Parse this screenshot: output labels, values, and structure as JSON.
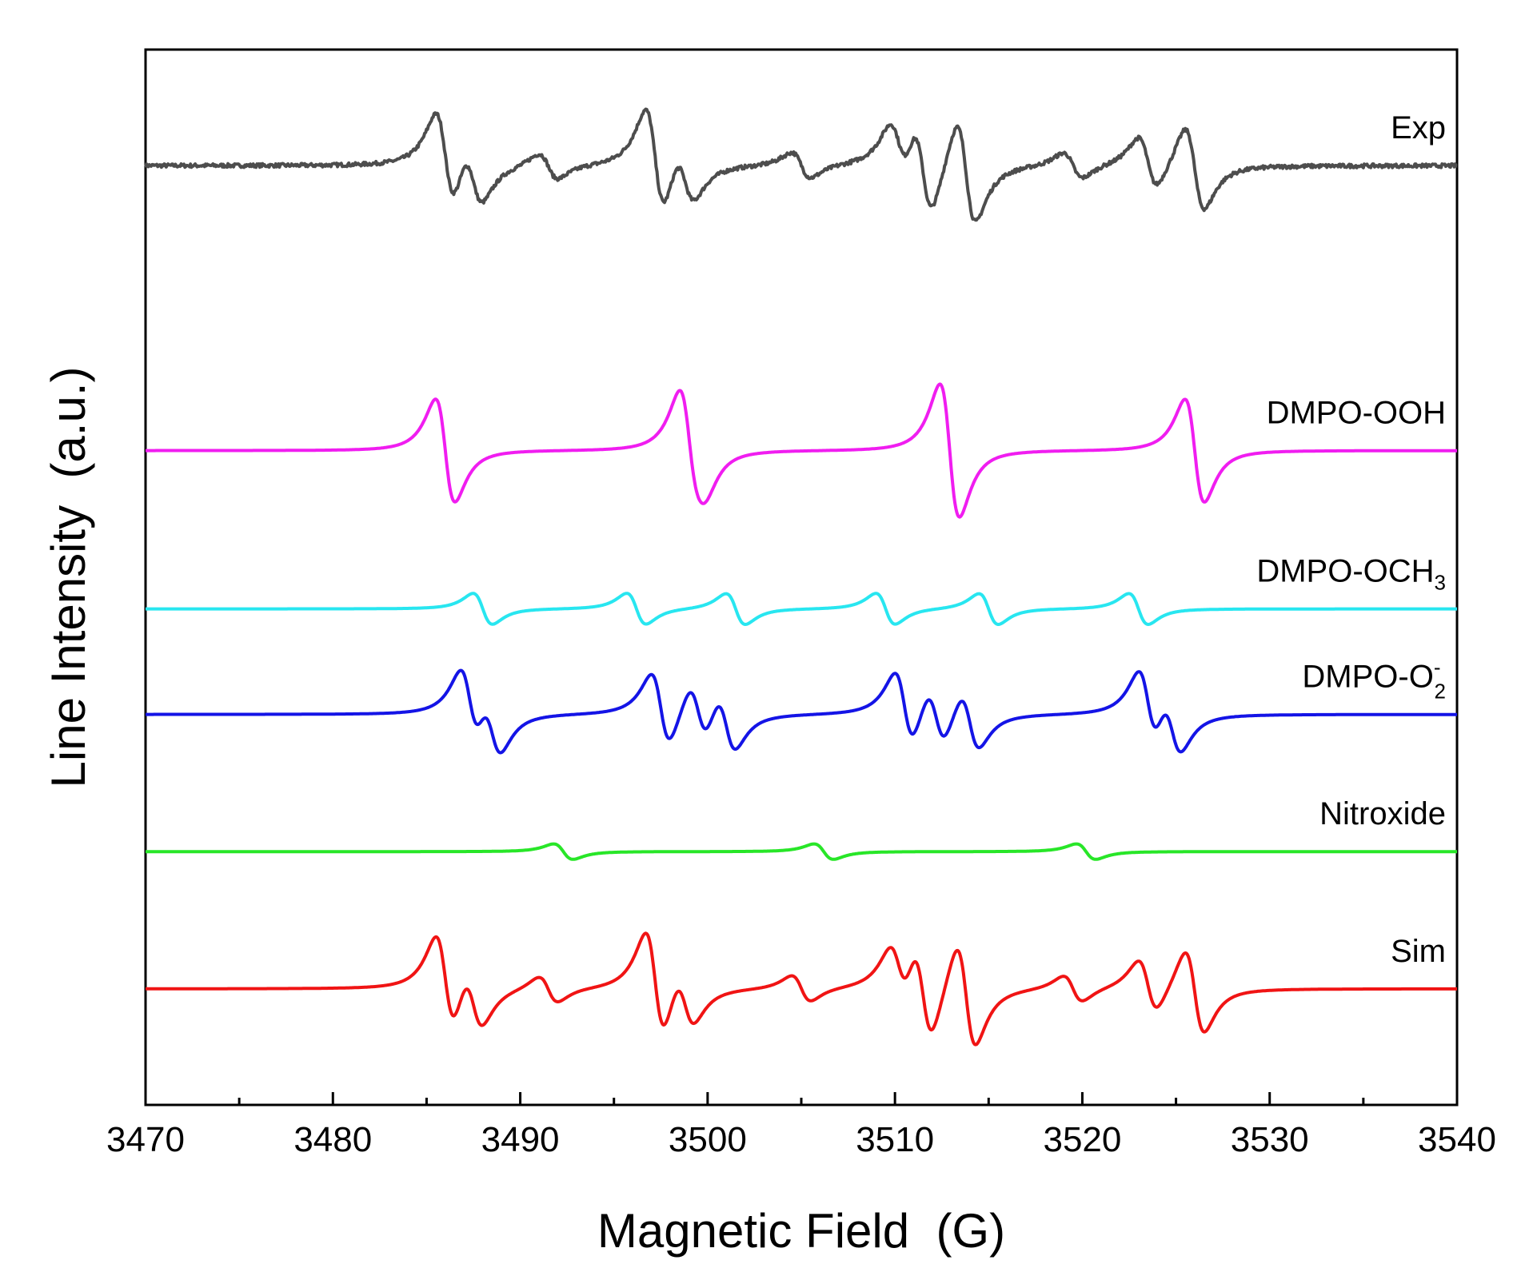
{
  "chart_data": {
    "type": "line",
    "title": "",
    "xlabel": "Magnetic Field  (G)",
    "ylabel": "Line Intensity  (a.u.)",
    "xlim": [
      3470,
      3540
    ],
    "xticks": [
      3470,
      3480,
      3490,
      3500,
      3510,
      3520,
      3530,
      3540
    ],
    "yticks_shown": false,
    "grid": false,
    "legend": "inline labels at right",
    "series": [
      {
        "name": "Exp",
        "label_main": "Exp",
        "label_sub": "",
        "label_sup": "",
        "color": "#4d4d4d",
        "offset": 0.89,
        "noise": 0.012,
        "components": [
          {
            "center": 3486.0,
            "amp": 0.9
          },
          {
            "center": 3497.2,
            "amp": 1.0
          },
          {
            "center": 3511.5,
            "amp": 0.9
          },
          {
            "center": 3526.0,
            "amp": 0.8
          },
          {
            "center": 3487.5,
            "amp": 0.55
          },
          {
            "center": 3498.8,
            "amp": 0.5
          },
          {
            "center": 3510.2,
            "amp": 0.55
          },
          {
            "center": 3523.5,
            "amp": 0.5
          },
          {
            "center": 3513.8,
            "amp": 1.0
          },
          {
            "center": 3491.5,
            "amp": 0.25
          },
          {
            "center": 3505.0,
            "amp": 0.25
          },
          {
            "center": 3519.5,
            "amp": 0.25
          }
        ]
      },
      {
        "name": "DMPO-OOH",
        "label_main": "DMPO-OOH",
        "label_sub": "",
        "label_sup": "",
        "color": "#f01df0",
        "offset": 0.62,
        "noise": 0,
        "components": [
          {
            "center": 3486.0,
            "amp": 1.0
          },
          {
            "center": 3499.0,
            "amp": 1.0
          },
          {
            "center": 3512.9,
            "amp": 1.0
          },
          {
            "center": 3526.0,
            "amp": 1.0
          },
          {
            "center": 3499.6,
            "amp": 0.28
          },
          {
            "center": 3513.0,
            "amp": 0.3
          }
        ]
      },
      {
        "name": "DMPO-OCH3",
        "label_main": "DMPO-OCH",
        "label_sub": "3",
        "label_sup": "",
        "color": "#28e6f0",
        "offset": 0.47,
        "noise": 0,
        "components": [
          {
            "center": 3488.0,
            "amp": 0.3
          },
          {
            "center": 3496.2,
            "amp": 0.3
          },
          {
            "center": 3501.5,
            "amp": 0.3
          },
          {
            "center": 3509.5,
            "amp": 0.3
          },
          {
            "center": 3515.0,
            "amp": 0.3
          },
          {
            "center": 3523.0,
            "amp": 0.3
          }
        ]
      },
      {
        "name": "DMPO-O2-",
        "label_main": "DMPO-O",
        "label_sub": "2",
        "label_sup": "-",
        "color": "#1414e6",
        "offset": 0.37,
        "noise": 0,
        "components": [
          {
            "center": 3487.3,
            "amp": 0.7
          },
          {
            "center": 3488.5,
            "amp": 0.55
          },
          {
            "center": 3497.5,
            "amp": 0.7
          },
          {
            "center": 3499.5,
            "amp": 0.55
          },
          {
            "center": 3501.0,
            "amp": 0.55
          },
          {
            "center": 3510.5,
            "amp": 0.7
          },
          {
            "center": 3512.2,
            "amp": 0.55
          },
          {
            "center": 3514.0,
            "amp": 0.55
          },
          {
            "center": 3523.5,
            "amp": 0.7
          },
          {
            "center": 3524.8,
            "amp": 0.55
          }
        ]
      },
      {
        "name": "Nitroxide",
        "label_main": "Nitroxide",
        "label_sub": "",
        "label_sup": "",
        "color": "#28e628",
        "offset": 0.24,
        "noise": 0,
        "components": [
          {
            "center": 3492.3,
            "amp": 0.15
          },
          {
            "center": 3506.2,
            "amp": 0.15
          },
          {
            "center": 3520.2,
            "amp": 0.15
          }
        ]
      },
      {
        "name": "Sim",
        "label_main": "Sim",
        "label_sub": "",
        "label_sup": "",
        "color": "#f01414",
        "offset": 0.11,
        "noise": 0,
        "components": [
          {
            "center": 3486.0,
            "amp": 0.9
          },
          {
            "center": 3497.2,
            "amp": 1.0
          },
          {
            "center": 3511.5,
            "amp": 0.9
          },
          {
            "center": 3526.0,
            "amp": 0.8
          },
          {
            "center": 3487.5,
            "amp": 0.55
          },
          {
            "center": 3498.8,
            "amp": 0.5
          },
          {
            "center": 3510.2,
            "amp": 0.55
          },
          {
            "center": 3523.5,
            "amp": 0.5
          },
          {
            "center": 3513.8,
            "amp": 1.0
          },
          {
            "center": 3491.5,
            "amp": 0.25
          },
          {
            "center": 3505.0,
            "amp": 0.25
          },
          {
            "center": 3519.5,
            "amp": 0.25
          }
        ]
      }
    ]
  }
}
